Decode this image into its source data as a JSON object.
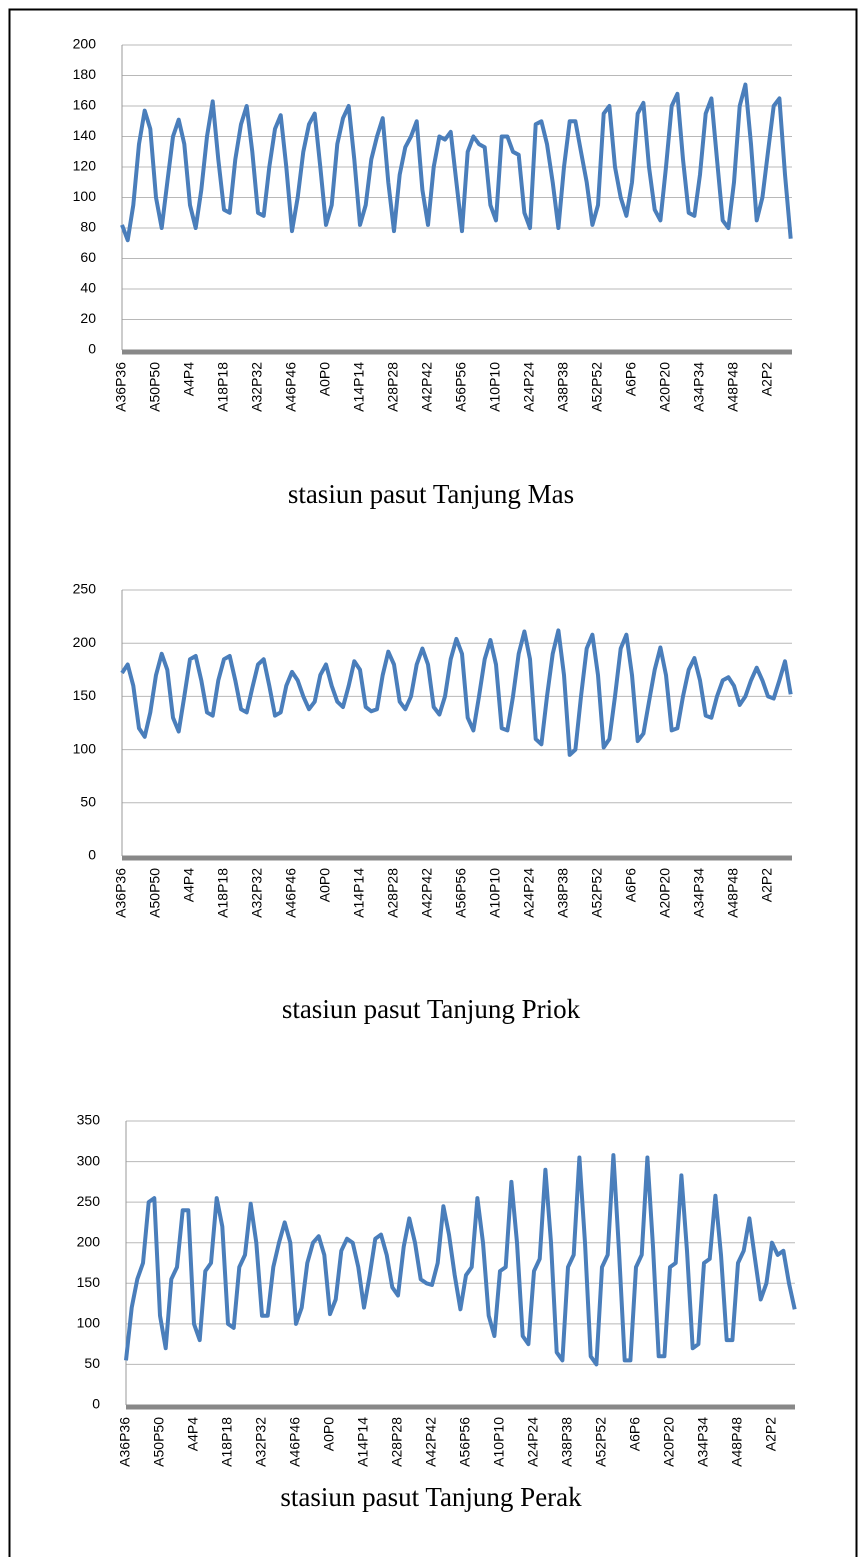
{
  "chart_data": [
    {
      "type": "line",
      "title": "stasiun pasut Tanjung Mas",
      "categories": [
        "A36P36",
        null,
        null,
        null,
        null,
        null,
        "A50P50",
        null,
        null,
        null,
        null,
        null,
        "A4P4",
        null,
        null,
        null,
        null,
        null,
        "A18P18",
        null,
        null,
        null,
        null,
        null,
        "A32P32",
        null,
        null,
        null,
        null,
        null,
        "A46P46",
        null,
        null,
        null,
        null,
        null,
        "A0P0",
        null,
        null,
        null,
        null,
        null,
        "A14P14",
        null,
        null,
        null,
        null,
        null,
        "A28P28",
        null,
        null,
        null,
        null,
        null,
        "A42P42",
        null,
        null,
        null,
        null,
        null,
        "A56P56",
        null,
        null,
        null,
        null,
        null,
        "A10P10",
        null,
        null,
        null,
        null,
        null,
        "A24P24",
        null,
        null,
        null,
        null,
        null,
        "A38P38",
        null,
        null,
        null,
        null,
        null,
        "A52P52",
        null,
        null,
        null,
        null,
        null,
        "A6P6",
        null,
        null,
        null,
        null,
        null,
        "A20P20",
        null,
        null,
        null,
        null,
        null,
        "A34P34",
        null,
        null,
        null,
        null,
        null,
        "A48P48",
        null,
        null,
        null,
        null,
        null,
        "A2P2",
        null,
        null,
        null,
        null
      ],
      "series": [
        {
          "color": "#4a7ebb",
          "values": [
            82,
            72,
            95,
            135,
            157,
            145,
            100,
            80,
            110,
            140,
            151,
            135,
            95,
            80,
            105,
            140,
            163,
            125,
            92,
            90,
            125,
            148,
            160,
            130,
            90,
            88,
            120,
            145,
            154,
            120,
            78,
            100,
            130,
            148,
            155,
            120,
            82,
            95,
            135,
            152,
            160,
            125,
            82,
            95,
            125,
            140,
            152,
            110,
            78,
            115,
            133,
            140,
            150,
            105,
            82,
            120,
            140,
            138,
            143,
            110,
            78,
            130,
            140,
            135,
            133,
            95,
            85,
            140,
            140,
            130,
            128,
            90,
            80,
            148,
            150,
            135,
            110,
            80,
            120,
            150,
            150,
            130,
            110,
            82,
            95,
            155,
            160,
            120,
            100,
            88,
            110,
            155,
            162,
            120,
            92,
            85,
            120,
            160,
            168,
            125,
            90,
            88,
            115,
            155,
            165,
            125,
            85,
            80,
            110,
            160,
            174,
            135,
            85,
            100,
            130,
            160,
            165,
            115,
            73
          ]
        }
      ],
      "ylim": [
        0,
        200
      ],
      "yticks": [
        0,
        20,
        40,
        60,
        80,
        100,
        120,
        140,
        160,
        180,
        200
      ],
      "grid": true
    },
    {
      "type": "line",
      "title": "stasiun pasut Tanjung Priok",
      "categories": [
        "A36P36",
        null,
        null,
        null,
        null,
        null,
        "A50P50",
        null,
        null,
        null,
        null,
        null,
        "A4P4",
        null,
        null,
        null,
        null,
        null,
        "A18P18",
        null,
        null,
        null,
        null,
        null,
        "A32P32",
        null,
        null,
        null,
        null,
        null,
        "A46P46",
        null,
        null,
        null,
        null,
        null,
        "A0P0",
        null,
        null,
        null,
        null,
        null,
        "A14P14",
        null,
        null,
        null,
        null,
        null,
        "A28P28",
        null,
        null,
        null,
        null,
        null,
        "A42P42",
        null,
        null,
        null,
        null,
        null,
        "A56P56",
        null,
        null,
        null,
        null,
        null,
        "A10P10",
        null,
        null,
        null,
        null,
        null,
        "A24P24",
        null,
        null,
        null,
        null,
        null,
        "A38P38",
        null,
        null,
        null,
        null,
        null,
        "A52P52",
        null,
        null,
        null,
        null,
        null,
        "A6P6",
        null,
        null,
        null,
        null,
        null,
        "A20P20",
        null,
        null,
        null,
        null,
        null,
        "A34P34",
        null,
        null,
        null,
        null,
        null,
        "A48P48",
        null,
        null,
        null,
        null,
        null,
        "A2P2",
        null,
        null,
        null,
        null
      ],
      "series": [
        {
          "color": "#4a7ebb",
          "values": [
            172,
            180,
            160,
            120,
            112,
            135,
            170,
            190,
            175,
            130,
            117,
            150,
            185,
            188,
            165,
            135,
            132,
            165,
            185,
            188,
            165,
            138,
            135,
            158,
            180,
            185,
            160,
            132,
            135,
            160,
            173,
            165,
            150,
            138,
            145,
            170,
            180,
            160,
            145,
            140,
            160,
            183,
            175,
            140,
            136,
            138,
            170,
            192,
            180,
            145,
            138,
            150,
            180,
            195,
            180,
            140,
            133,
            150,
            185,
            204,
            190,
            130,
            118,
            150,
            185,
            203,
            180,
            120,
            118,
            150,
            190,
            211,
            185,
            110,
            105,
            150,
            190,
            212,
            170,
            95,
            100,
            150,
            195,
            208,
            170,
            102,
            110,
            150,
            195,
            208,
            170,
            108,
            115,
            145,
            175,
            196,
            170,
            118,
            120,
            150,
            175,
            186,
            165,
            132,
            130,
            150,
            165,
            168,
            160,
            142,
            150,
            165,
            177,
            165,
            150,
            148,
            165,
            183,
            152
          ]
        }
      ],
      "ylim": [
        0,
        250
      ],
      "yticks": [
        0,
        50,
        100,
        150,
        200,
        250
      ],
      "grid": true
    },
    {
      "type": "line",
      "title": "stasiun pasut Tanjung Perak",
      "categories": [
        "A36P36",
        null,
        null,
        null,
        null,
        null,
        "A50P50",
        null,
        null,
        null,
        null,
        null,
        "A4P4",
        null,
        null,
        null,
        null,
        null,
        "A18P18",
        null,
        null,
        null,
        null,
        null,
        "A32P32",
        null,
        null,
        null,
        null,
        null,
        "A46P46",
        null,
        null,
        null,
        null,
        null,
        "A0P0",
        null,
        null,
        null,
        null,
        null,
        "A14P14",
        null,
        null,
        null,
        null,
        null,
        "A28P28",
        null,
        null,
        null,
        null,
        null,
        "A42P42",
        null,
        null,
        null,
        null,
        null,
        "A56P56",
        null,
        null,
        null,
        null,
        null,
        "A10P10",
        null,
        null,
        null,
        null,
        null,
        "A24P24",
        null,
        null,
        null,
        null,
        null,
        "A38P38",
        null,
        null,
        null,
        null,
        null,
        "A52P52",
        null,
        null,
        null,
        null,
        null,
        "A6P6",
        null,
        null,
        null,
        null,
        null,
        "A20P20",
        null,
        null,
        null,
        null,
        null,
        "A34P34",
        null,
        null,
        null,
        null,
        null,
        "A48P48",
        null,
        null,
        null,
        null,
        null,
        "A2P2",
        null,
        null,
        null,
        null
      ],
      "series": [
        {
          "color": "#4a7ebb",
          "values": [
            55,
            120,
            155,
            175,
            250,
            255,
            110,
            70,
            155,
            170,
            240,
            240,
            100,
            80,
            165,
            175,
            255,
            220,
            100,
            95,
            170,
            185,
            248,
            200,
            110,
            110,
            170,
            200,
            225,
            200,
            100,
            120,
            175,
            200,
            208,
            185,
            112,
            130,
            190,
            205,
            200,
            170,
            120,
            160,
            205,
            210,
            185,
            145,
            135,
            195,
            230,
            200,
            155,
            150,
            148,
            175,
            245,
            210,
            160,
            118,
            160,
            170,
            255,
            200,
            110,
            85,
            165,
            170,
            275,
            200,
            85,
            75,
            165,
            180,
            290,
            200,
            65,
            55,
            170,
            185,
            305,
            200,
            60,
            50,
            170,
            185,
            308,
            190,
            55,
            55,
            170,
            185,
            305,
            195,
            60,
            60,
            170,
            175,
            283,
            190,
            70,
            75,
            175,
            180,
            258,
            185,
            80,
            80,
            175,
            190,
            230,
            180,
            130,
            150,
            200,
            185,
            190,
            150,
            118
          ]
        }
      ],
      "ylim": [
        0,
        350
      ],
      "yticks": [
        0,
        50,
        100,
        150,
        200,
        250,
        300,
        350
      ],
      "grid": true
    }
  ]
}
